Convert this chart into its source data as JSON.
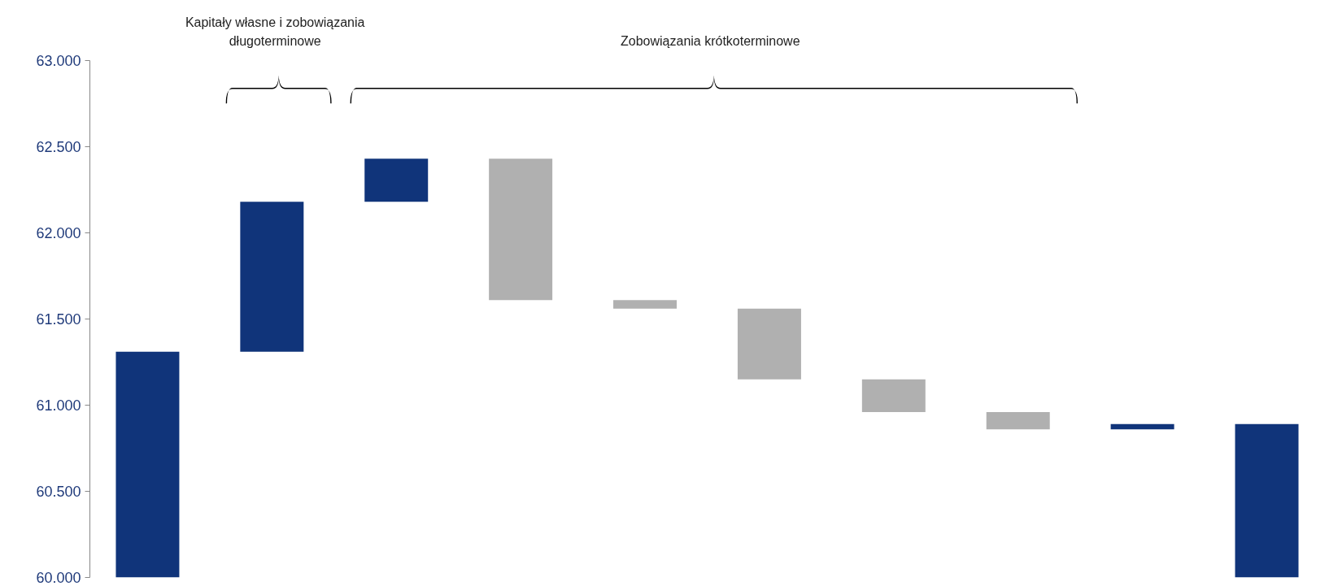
{
  "chart_data": {
    "type": "bar",
    "categories": [
      null,
      null,
      null,
      null,
      null,
      null,
      null,
      null,
      null,
      null
    ],
    "values": [
      1310,
      870,
      250,
      820,
      50,
      410,
      190,
      100,
      30,
      890
    ],
    "base": [
      60000,
      61310,
      62180,
      61610,
      61560,
      61150,
      60960,
      60860,
      60860,
      60000
    ],
    "colors": [
      "#10347a",
      "#10347a",
      "#10347a",
      "#b0b0b0",
      "#b0b0b0",
      "#b0b0b0",
      "#b0b0b0",
      "#b0b0b0",
      "#10347a",
      "#10347a"
    ],
    "ylim": [
      60000,
      63000
    ],
    "yticks": [
      {
        "value": 60000,
        "label": "60.000"
      },
      {
        "value": 60500,
        "label": "60.500"
      },
      {
        "value": 61000,
        "label": "61.000"
      },
      {
        "value": 61500,
        "label": "61.500"
      },
      {
        "value": 62000,
        "label": "62.000"
      },
      {
        "value": 62500,
        "label": "62.500"
      },
      {
        "value": 63000,
        "label": "63.000"
      }
    ],
    "annotations": [
      "Kapitały własne i zobowiązania\ndługoterminowe",
      "Zobowiązania krótkoterminowe"
    ],
    "grid": false
  }
}
